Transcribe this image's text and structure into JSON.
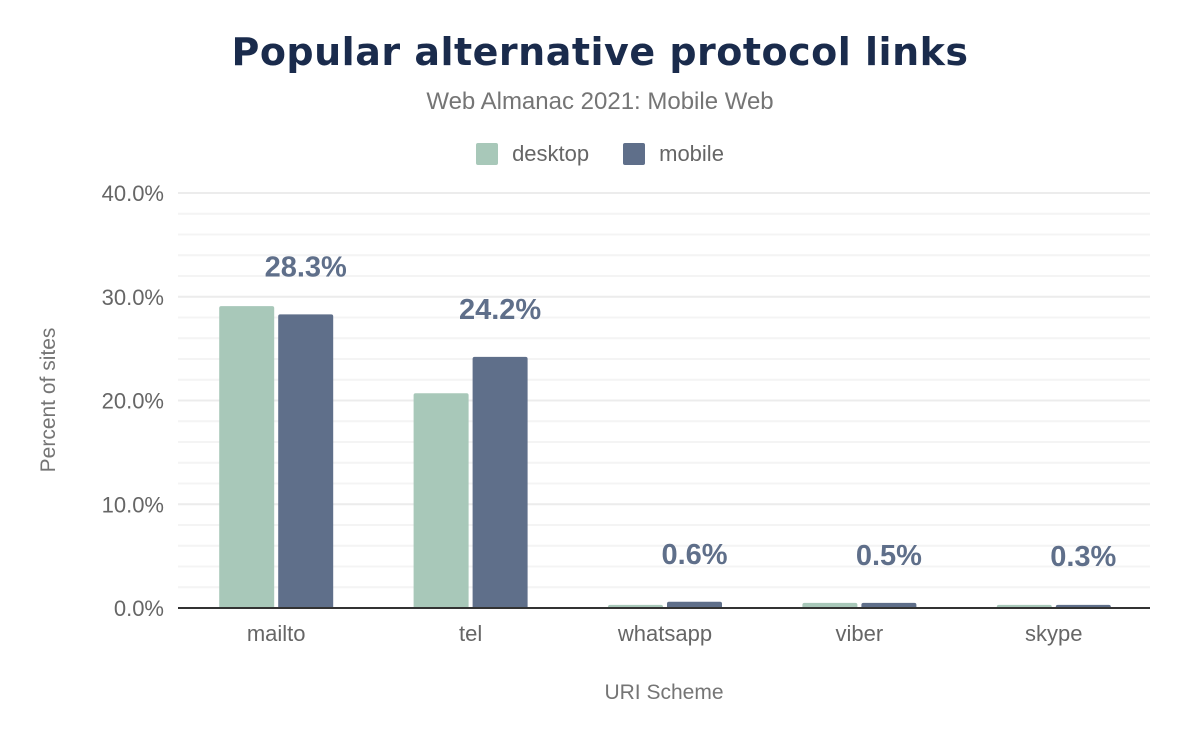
{
  "chart_data": {
    "type": "bar",
    "title": "Popular alternative protocol links",
    "subtitle": "Web Almanac 2021: Mobile Web",
    "xlabel": "URI Scheme",
    "ylabel": "Percent of sites",
    "categories": [
      "mailto",
      "tel",
      "whatsapp",
      "viber",
      "skype"
    ],
    "series": [
      {
        "name": "desktop",
        "color": "#a8c8b9",
        "values": [
          29.1,
          20.7,
          0.3,
          0.5,
          0.3
        ]
      },
      {
        "name": "mobile",
        "color": "#5f6f8a",
        "values": [
          28.3,
          24.2,
          0.6,
          0.5,
          0.3
        ]
      }
    ],
    "data_labels": [
      "28.3%",
      "24.2%",
      "0.6%",
      "0.5%",
      "0.3%"
    ],
    "ylim": [
      0,
      40
    ],
    "yticks": [
      "0.0%",
      "10.0%",
      "20.0%",
      "30.0%",
      "40.0%"
    ],
    "grid": true,
    "legend_position": "top-center"
  }
}
